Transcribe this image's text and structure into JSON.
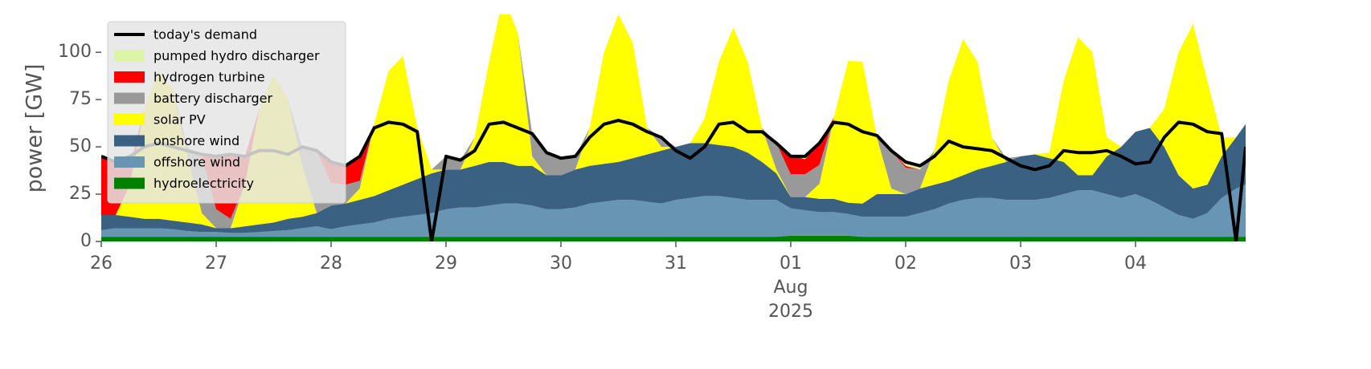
{
  "chart_data": {
    "type": "area",
    "ylabel": "power [GW]",
    "xlim": [
      "2025-07-26T00:00",
      "2025-08-04T23:00"
    ],
    "xticks": [
      {
        "value": "2025-07-26T00:00",
        "label": "26"
      },
      {
        "value": "2025-07-27T00:00",
        "label": "27"
      },
      {
        "value": "2025-07-28T00:00",
        "label": "28"
      },
      {
        "value": "2025-07-29T00:00",
        "label": "29"
      },
      {
        "value": "2025-07-30T00:00",
        "label": "30"
      },
      {
        "value": "2025-07-31T00:00",
        "label": "31"
      },
      {
        "value": "2025-08-01T00:00",
        "label": "01"
      },
      {
        "value": "2025-08-02T00:00",
        "label": "02"
      },
      {
        "value": "2025-08-03T00:00",
        "label": "03"
      },
      {
        "value": "2025-08-04T00:00",
        "label": "04"
      }
    ],
    "xtick_sublabel": {
      "value": "2025-08-01T00:00",
      "lines": [
        "Aug",
        "2025"
      ]
    },
    "ylim": [
      0,
      120
    ],
    "yticks": [
      0,
      25,
      50,
      75,
      100
    ],
    "legend": "upper left",
    "x": [
      "2025-07-26T00:00",
      "2025-07-26T03:00",
      "2025-07-26T06:00",
      "2025-07-26T09:00",
      "2025-07-26T12:00",
      "2025-07-26T15:00",
      "2025-07-26T18:00",
      "2025-07-26T21:00",
      "2025-07-27T00:00",
      "2025-07-27T03:00",
      "2025-07-27T06:00",
      "2025-07-27T09:00",
      "2025-07-27T12:00",
      "2025-07-27T15:00",
      "2025-07-27T18:00",
      "2025-07-27T21:00",
      "2025-07-28T00:00",
      "2025-07-28T03:00",
      "2025-07-28T06:00",
      "2025-07-28T09:00",
      "2025-07-28T12:00",
      "2025-07-28T15:00",
      "2025-07-28T18:00",
      "2025-07-28T21:00",
      "2025-07-29T00:00",
      "2025-07-29T03:00",
      "2025-07-29T06:00",
      "2025-07-29T09:00",
      "2025-07-29T12:00",
      "2025-07-29T15:00",
      "2025-07-29T18:00",
      "2025-07-29T21:00",
      "2025-07-30T00:00",
      "2025-07-30T03:00",
      "2025-07-30T06:00",
      "2025-07-30T09:00",
      "2025-07-30T12:00",
      "2025-07-30T15:00",
      "2025-07-30T18:00",
      "2025-07-30T21:00",
      "2025-07-31T00:00",
      "2025-07-31T03:00",
      "2025-07-31T06:00",
      "2025-07-31T09:00",
      "2025-07-31T12:00",
      "2025-07-31T15:00",
      "2025-07-31T18:00",
      "2025-07-31T21:00",
      "2025-08-01T00:00",
      "2025-08-01T03:00",
      "2025-08-01T06:00",
      "2025-08-01T09:00",
      "2025-08-01T12:00",
      "2025-08-01T15:00",
      "2025-08-01T18:00",
      "2025-08-01T21:00",
      "2025-08-02T00:00",
      "2025-08-02T03:00",
      "2025-08-02T06:00",
      "2025-08-02T09:00",
      "2025-08-02T12:00",
      "2025-08-02T15:00",
      "2025-08-02T18:00",
      "2025-08-02T21:00",
      "2025-08-03T00:00",
      "2025-08-03T03:00",
      "2025-08-03T06:00",
      "2025-08-03T09:00",
      "2025-08-03T12:00",
      "2025-08-03T15:00",
      "2025-08-03T18:00",
      "2025-08-03T21:00",
      "2025-08-04T00:00",
      "2025-08-04T03:00",
      "2025-08-04T06:00",
      "2025-08-04T09:00",
      "2025-08-04T12:00",
      "2025-08-04T15:00",
      "2025-08-04T18:00",
      "2025-08-04T21:00",
      "2025-08-04T23:00"
    ],
    "series": [
      {
        "name": "today's demand",
        "type": "line",
        "color": "#000000",
        "values": [
          45,
          42,
          45,
          50,
          52,
          50,
          48,
          46,
          45,
          46,
          45,
          48,
          48,
          46,
          50,
          48,
          42,
          40,
          45,
          60,
          63,
          62,
          58,
          0,
          45,
          43,
          48,
          62,
          63,
          60,
          57,
          47,
          44,
          45,
          55,
          62,
          64,
          62,
          58,
          55,
          48,
          44,
          50,
          62,
          63,
          58,
          58,
          52,
          45,
          45,
          52,
          63,
          62,
          58,
          56,
          48,
          42,
          40,
          45,
          53,
          50,
          49,
          48,
          44,
          40,
          38,
          40,
          48,
          47,
          47,
          48,
          45,
          41,
          42,
          55,
          63,
          62,
          58,
          57,
          0,
          50
        ]
      },
      {
        "name": "pumped hydro discharger",
        "type": "area",
        "color": "#dcf5a4",
        "values": [
          0,
          0,
          0,
          0,
          0,
          0,
          0,
          0,
          0,
          0,
          0,
          0,
          0,
          0,
          0,
          0,
          0,
          0,
          0,
          0,
          0,
          0,
          0,
          0,
          0,
          0,
          0,
          0,
          0,
          0,
          0,
          0,
          0,
          0,
          0,
          0,
          0,
          0,
          0,
          0,
          0,
          0,
          0,
          0,
          0,
          0,
          0,
          0,
          0,
          2,
          0,
          0,
          0,
          0,
          0,
          0,
          2,
          2,
          0,
          0,
          0,
          0,
          0,
          0,
          0,
          0,
          0,
          0,
          0,
          0,
          0,
          0,
          0,
          0,
          0,
          0,
          0,
          0,
          0,
          0,
          0
        ]
      },
      {
        "name": "hydrogen turbine",
        "type": "area",
        "color": "#ff0000",
        "values": [
          31,
          28,
          10,
          0,
          0,
          0,
          0,
          0,
          28,
          34,
          15,
          0,
          0,
          0,
          0,
          0,
          11,
          10,
          13,
          0,
          0,
          0,
          0,
          0,
          0,
          0,
          0,
          0,
          0,
          0,
          0,
          0,
          0,
          0,
          0,
          0,
          0,
          0,
          0,
          0,
          0,
          0,
          0,
          0,
          0,
          0,
          0,
          0,
          10,
          8,
          12,
          0,
          0,
          0,
          0,
          0,
          1,
          0,
          0,
          0,
          0,
          0,
          0,
          0,
          0,
          0,
          0,
          0,
          0,
          0,
          0,
          0,
          0,
          0,
          0,
          0,
          0,
          0,
          0,
          0,
          0
        ]
      },
      {
        "name": "battery discharger",
        "type": "area",
        "color": "#999999",
        "values": [
          0,
          0,
          0,
          0,
          0,
          0,
          5,
          30,
          10,
          5,
          0,
          0,
          0,
          0,
          10,
          33,
          12,
          10,
          4,
          0,
          0,
          0,
          0,
          0,
          7,
          5,
          0,
          0,
          0,
          0,
          12,
          12,
          9,
          7,
          0,
          0,
          0,
          0,
          0,
          5,
          0,
          0,
          0,
          0,
          0,
          0,
          0,
          14,
          12,
          12,
          10,
          0,
          0,
          0,
          0,
          20,
          14,
          10,
          0,
          0,
          0,
          0,
          0,
          2,
          0,
          0,
          0,
          0,
          0,
          0,
          0,
          0,
          0,
          0,
          0,
          0,
          0,
          0,
          0,
          0,
          0
        ]
      },
      {
        "name": "solar PV",
        "type": "area",
        "color": "#ffff00",
        "values": [
          0,
          0,
          17,
          58,
          78,
          69,
          35,
          6,
          0,
          0,
          22,
          61,
          78,
          63,
          27,
          0,
          0,
          0,
          6,
          38,
          63,
          68,
          27,
          2,
          0,
          0,
          15,
          53,
          88,
          70,
          5,
          0,
          0,
          0,
          20,
          59,
          78,
          61,
          14,
          2,
          0,
          0,
          13,
          44,
          63,
          48,
          18,
          2,
          0,
          0,
          8,
          43,
          75,
          75,
          30,
          3,
          0,
          0,
          18,
          53,
          72,
          57,
          15,
          0,
          0,
          0,
          3,
          43,
          73,
          65,
          10,
          0,
          0,
          0,
          20,
          65,
          87,
          55,
          10,
          0,
          0
        ]
      },
      {
        "name": "onshore wind",
        "type": "area",
        "color": "#3b6182",
        "values": [
          8,
          7,
          6,
          5,
          5,
          4.5,
          4.5,
          4,
          2,
          2.5,
          3.5,
          4,
          4.5,
          6,
          6,
          7,
          12.5,
          12,
          13,
          14,
          15,
          17,
          19,
          21,
          21,
          20,
          22,
          23,
          22,
          20,
          21,
          18,
          18,
          20,
          20,
          20,
          20,
          22,
          25,
          28,
          28,
          29,
          28,
          27,
          27,
          25,
          20,
          14,
          6,
          7,
          7,
          7,
          6,
          7,
          12,
          12,
          12,
          13,
          13,
          12,
          13,
          15,
          17,
          20,
          23,
          24,
          21,
          17,
          8,
          8,
          20,
          27,
          33,
          38,
          32,
          21,
          16,
          15,
          22,
          27,
          32
        ]
      },
      {
        "name": "offshore wind",
        "type": "area",
        "color": "#6895b4",
        "values": [
          3.5,
          4.5,
          4.5,
          4.5,
          4.5,
          4,
          3,
          2.5,
          2.5,
          2,
          2,
          2.5,
          3,
          3.5,
          4.5,
          5.5,
          4,
          5.5,
          6.5,
          7.5,
          9.5,
          10.5,
          11.5,
          12.5,
          14.5,
          15.5,
          15.5,
          16.5,
          17.5,
          17.5,
          16.5,
          14.5,
          14.5,
          15.5,
          17.5,
          18.5,
          19.5,
          19.5,
          18.5,
          17.5,
          19.5,
          20.5,
          21.5,
          21.5,
          20.5,
          19.5,
          19.5,
          19.5,
          14.5,
          13.5,
          12.5,
          12.5,
          11.5,
          10.5,
          10.5,
          10.5,
          10.5,
          12.5,
          14.5,
          17.5,
          19.5,
          20.5,
          20.5,
          19.5,
          19.5,
          19.5,
          20.5,
          22.5,
          24.5,
          24.5,
          22.5,
          20.5,
          22.5,
          19.5,
          15.5,
          11.5,
          9.5,
          12.5,
          20.5,
          25.5,
          27.5
        ]
      },
      {
        "name": "hydroelectricity",
        "type": "area",
        "color": "#008000",
        "values": [
          2.5,
          2.5,
          2.5,
          2.5,
          2.5,
          2.5,
          2.5,
          2.5,
          2.5,
          2.5,
          2.5,
          2.5,
          2.5,
          2.5,
          2.5,
          2.5,
          2.5,
          2.5,
          2.5,
          2.5,
          2.5,
          2.5,
          2.5,
          2.5,
          2.5,
          2.5,
          2.5,
          2.5,
          2.5,
          2.5,
          2.5,
          2.5,
          2.5,
          2.5,
          2.5,
          2.5,
          2.5,
          2.5,
          2.5,
          2.5,
          2.5,
          2.5,
          2.5,
          2.5,
          2.5,
          2.5,
          2.5,
          2.5,
          3,
          3,
          3,
          3,
          3,
          2.5,
          2.5,
          2.5,
          2.5,
          2.5,
          2.5,
          2.5,
          2.5,
          2.5,
          2.5,
          2.5,
          2.5,
          2.5,
          2.5,
          2.5,
          2.5,
          2.5,
          2.5,
          2.5,
          2.5,
          2.5,
          2.5,
          2.5,
          2.5,
          2.5,
          2.5,
          2.5,
          2.5
        ]
      }
    ]
  }
}
